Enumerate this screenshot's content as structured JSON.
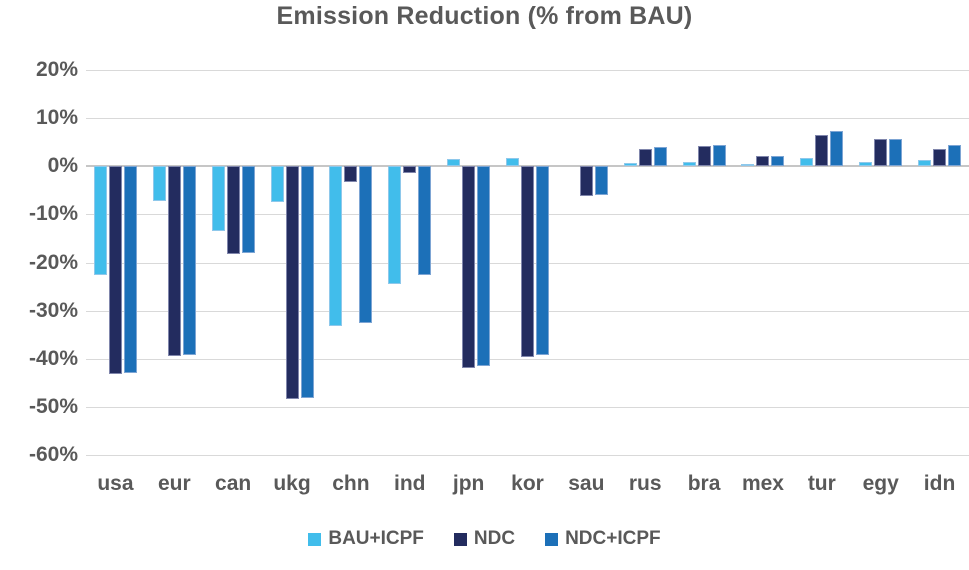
{
  "chart_data": {
    "type": "bar",
    "title": "Emission Reduction (% from BAU)",
    "categories": [
      "usa",
      "eur",
      "can",
      "ukg",
      "chn",
      "ind",
      "jpn",
      "kor",
      "sau",
      "rus",
      "bra",
      "mex",
      "tur",
      "egy",
      "idn"
    ],
    "series": [
      {
        "name": "BAU+ICPF",
        "color": "#41bdeb",
        "values": [
          -22.6,
          -7.2,
          -13.4,
          -7.4,
          -33.2,
          -24.4,
          1.5,
          1.7,
          0,
          0.6,
          0.8,
          0.4,
          1.7,
          0.9,
          1.2
        ]
      },
      {
        "name": "NDC",
        "color": "#232c5f",
        "values": [
          -43.2,
          -39.4,
          -18.3,
          -48.4,
          -3.3,
          -1.5,
          -42.0,
          -39.6,
          -6.1,
          3.6,
          4.2,
          2.1,
          6.5,
          5.7,
          3.5
        ]
      },
      {
        "name": "NDC+ICPF",
        "color": "#1c70b8",
        "values": [
          -42.9,
          -39.2,
          -18.0,
          -48.2,
          -32.5,
          -22.6,
          -41.5,
          -39.2,
          -5.9,
          3.9,
          4.4,
          2.2,
          7.3,
          5.7,
          4.4
        ]
      }
    ],
    "y_axis": {
      "min": -60,
      "max": 20,
      "step": 10,
      "tick_labels": [
        "20%",
        "10%",
        "0%",
        "-10%",
        "-20%",
        "-30%",
        "-40%",
        "-50%",
        "-60%"
      ]
    },
    "grid": true,
    "legend_position": "bottom",
    "colors": {
      "title_text": "#595959",
      "axis_text": "#595959",
      "gridline": "#d9d9d9",
      "zero_line": "#c6c6c6",
      "background": "#ffffff"
    }
  }
}
